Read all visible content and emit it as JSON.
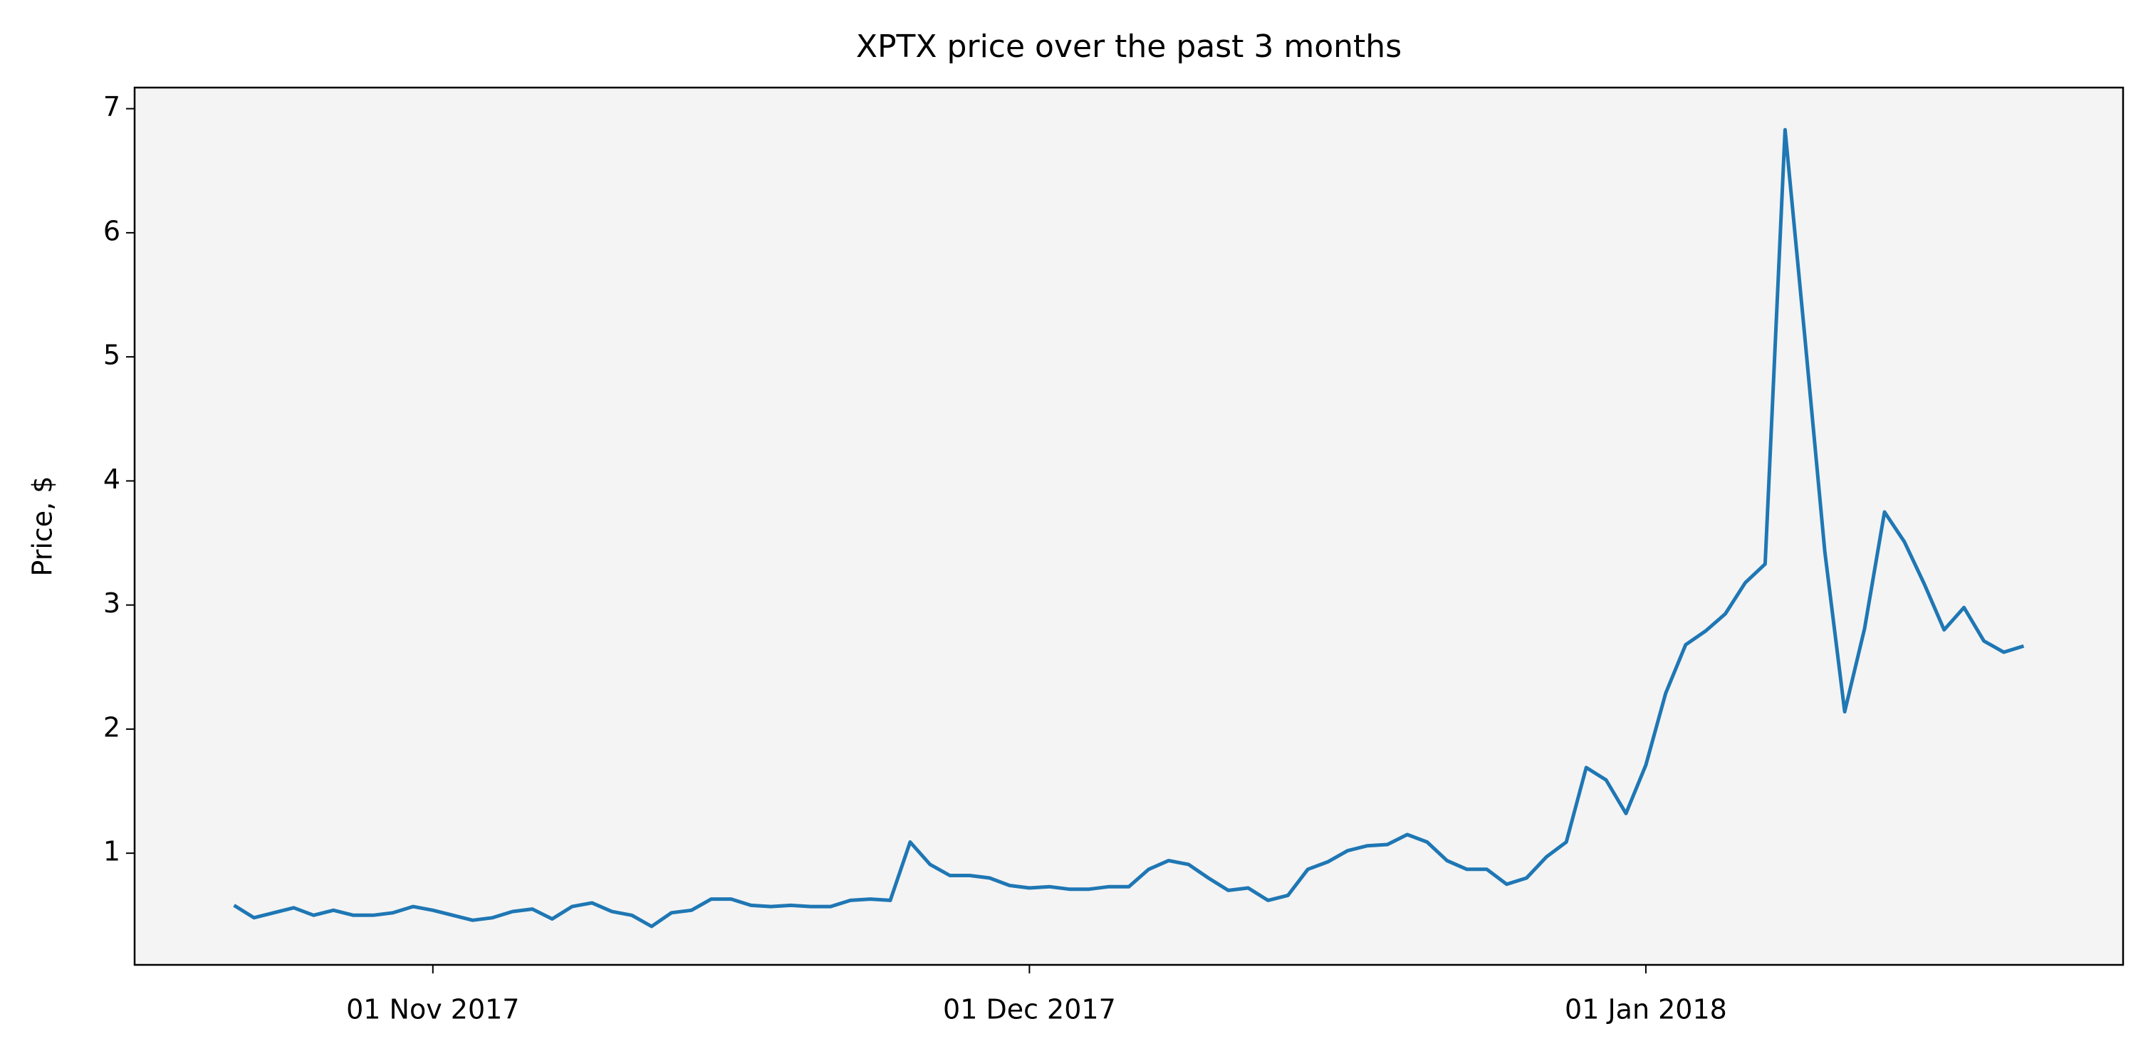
{
  "chart_data": {
    "type": "line",
    "title": "XPTX price over the past 3 months",
    "y_label": "Price, $",
    "x": [
      "2017-10-22",
      "2017-10-23",
      "2017-10-24",
      "2017-10-25",
      "2017-10-26",
      "2017-10-27",
      "2017-10-28",
      "2017-10-29",
      "2017-10-30",
      "2017-10-31",
      "2017-11-01",
      "2017-11-02",
      "2017-11-03",
      "2017-11-04",
      "2017-11-05",
      "2017-11-06",
      "2017-11-07",
      "2017-11-08",
      "2017-11-09",
      "2017-11-10",
      "2017-11-11",
      "2017-11-12",
      "2017-11-13",
      "2017-11-14",
      "2017-11-15",
      "2017-11-16",
      "2017-11-17",
      "2017-11-18",
      "2017-11-19",
      "2017-11-20",
      "2017-11-21",
      "2017-11-22",
      "2017-11-23",
      "2017-11-24",
      "2017-11-25",
      "2017-11-26",
      "2017-11-27",
      "2017-11-28",
      "2017-11-29",
      "2017-11-30",
      "2017-12-01",
      "2017-12-02",
      "2017-12-03",
      "2017-12-04",
      "2017-12-05",
      "2017-12-06",
      "2017-12-07",
      "2017-12-08",
      "2017-12-09",
      "2017-12-10",
      "2017-12-11",
      "2017-12-12",
      "2017-12-13",
      "2017-12-14",
      "2017-12-15",
      "2017-12-16",
      "2017-12-17",
      "2017-12-18",
      "2017-12-19",
      "2017-12-20",
      "2017-12-21",
      "2017-12-22",
      "2017-12-23",
      "2017-12-24",
      "2017-12-25",
      "2017-12-26",
      "2017-12-27",
      "2017-12-28",
      "2017-12-29",
      "2017-12-30",
      "2017-12-31",
      "2018-01-01",
      "2018-01-02",
      "2018-01-03",
      "2018-01-04",
      "2018-01-05",
      "2018-01-06",
      "2018-01-07",
      "2018-01-08",
      "2018-01-09",
      "2018-01-10",
      "2018-01-11",
      "2018-01-12",
      "2018-01-13",
      "2018-01-14",
      "2018-01-15",
      "2018-01-16",
      "2018-01-17",
      "2018-01-18",
      "2018-01-19",
      "2018-01-20"
    ],
    "values": [
      0.58,
      0.48,
      0.52,
      0.56,
      0.5,
      0.54,
      0.5,
      0.5,
      0.52,
      0.57,
      0.54,
      0.5,
      0.46,
      0.48,
      0.53,
      0.55,
      0.47,
      0.57,
      0.6,
      0.53,
      0.5,
      0.41,
      0.52,
      0.54,
      0.63,
      0.63,
      0.58,
      0.57,
      0.58,
      0.57,
      0.57,
      0.62,
      0.63,
      0.62,
      1.09,
      0.91,
      0.82,
      0.82,
      0.8,
      0.74,
      0.72,
      0.73,
      0.71,
      0.71,
      0.73,
      0.73,
      0.87,
      0.94,
      0.91,
      0.8,
      0.7,
      0.72,
      0.62,
      0.66,
      0.87,
      0.93,
      1.02,
      1.06,
      1.07,
      1.15,
      1.09,
      0.94,
      0.87,
      0.87,
      0.75,
      0.8,
      0.97,
      1.09,
      1.69,
      1.59,
      1.32,
      1.71,
      2.29,
      2.68,
      2.79,
      2.93,
      3.18,
      3.33,
      6.83,
      5.15,
      3.43,
      2.14,
      2.81,
      3.75,
      3.51,
      3.17,
      2.8,
      2.98,
      2.71,
      2.62,
      2.67
    ],
    "color": "#1f77b4",
    "xlim": [
      "2017-10-17",
      "2018-01-25"
    ],
    "xticks": [
      {
        "value": "2017-11-01",
        "label": "01 Nov 2017"
      },
      {
        "value": "2017-12-01",
        "label": "01 Dec 2017"
      },
      {
        "value": "2018-01-01",
        "label": "01 Jan 2018"
      }
    ],
    "ylim": [
      0.1,
      7.17
    ],
    "yticks": [
      1,
      2,
      3,
      4,
      5,
      6,
      7
    ],
    "grid": false
  }
}
